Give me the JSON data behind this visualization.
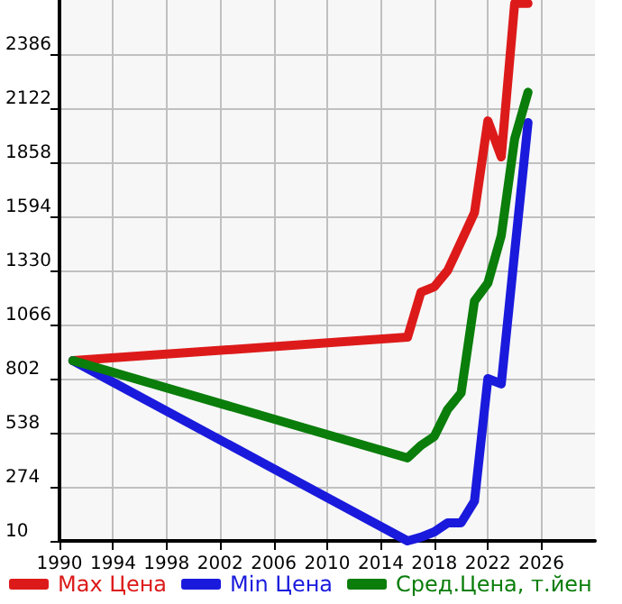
{
  "chart_data": {
    "type": "line",
    "xlim": [
      1990,
      2030
    ],
    "xticks": [
      1990,
      1994,
      1998,
      2002,
      2006,
      2010,
      2014,
      2018,
      2022,
      2026
    ],
    "ylim": [
      10,
      2650
    ],
    "yticks": [
      10,
      274,
      538,
      802,
      1066,
      1330,
      1594,
      1858,
      2122,
      2386
    ],
    "grid": true,
    "legend": "bottom",
    "marker": "none",
    "line_style": "solid",
    "series": [
      {
        "name": "Max Цена",
        "color": "#dd1a1a",
        "x": [
          1991,
          2016,
          2017,
          2018,
          2019,
          2020,
          2021,
          2022,
          2023,
          2024,
          2025
        ],
        "values": [
          890,
          1004,
          1224,
          1250,
          1330,
          1470,
          1612,
          2060,
          1884,
          2633,
          2633
        ]
      },
      {
        "name": "Min Цена",
        "color": "#1a1add",
        "x": [
          1991,
          2016,
          2017,
          2018,
          2019,
          2020,
          2021,
          2022,
          2023,
          2024,
          2025
        ],
        "values": [
          890,
          10,
          28,
          54,
          98,
          98,
          204,
          802,
          776,
          1418,
          2052
        ]
      },
      {
        "name": "Сред.Цена, т.йен",
        "color": "#0a7d0a",
        "x": [
          1991,
          2016,
          2017,
          2018,
          2019,
          2020,
          2021,
          2022,
          2023,
          2024,
          2025
        ],
        "values": [
          890,
          415,
          476,
          520,
          652,
          732,
          1180,
          1268,
          1500,
          1972,
          2200
        ]
      }
    ]
  }
}
